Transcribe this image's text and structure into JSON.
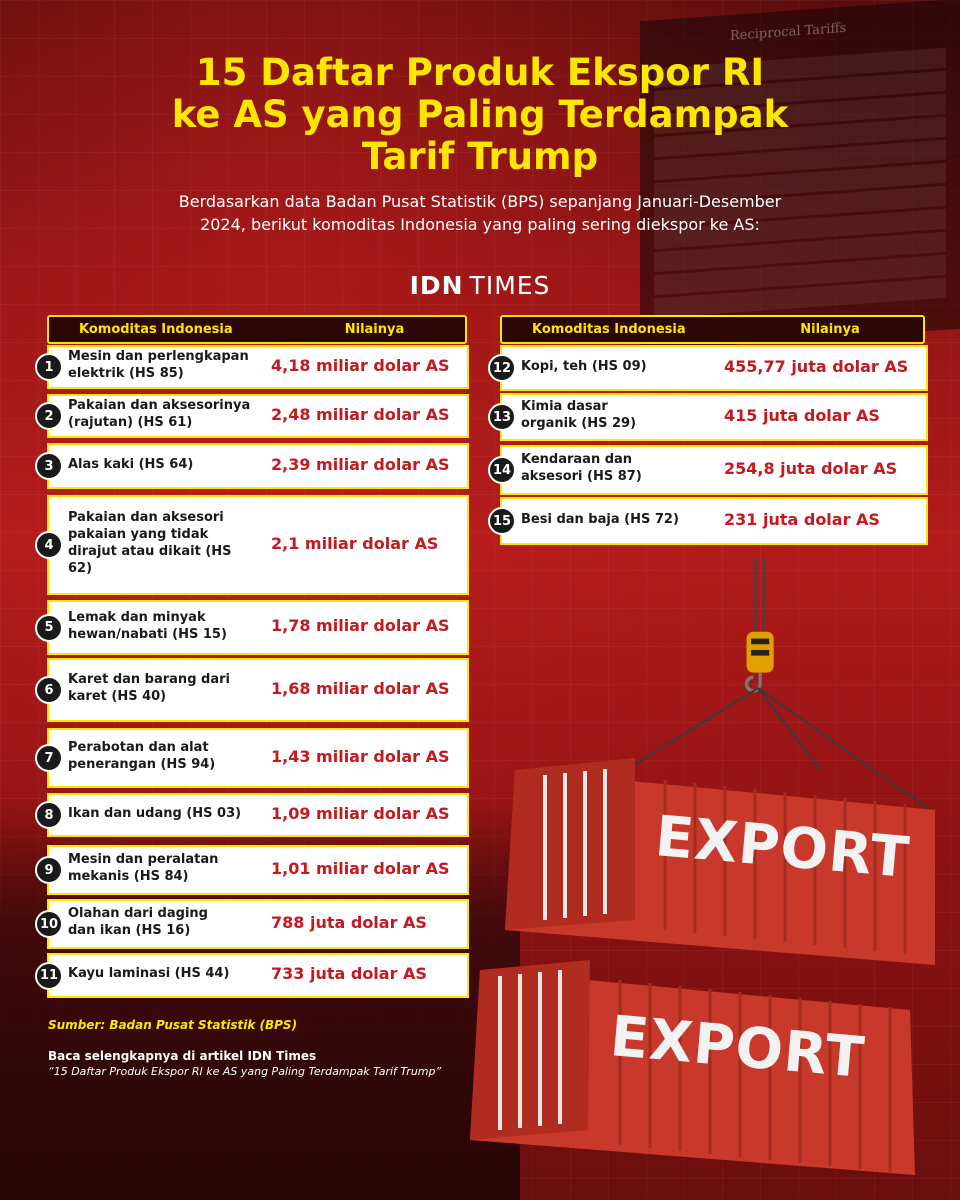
{
  "title_lines": [
    "15 Daftar Produk Ekspor RI",
    "ke AS yang Paling Terdampak",
    "Tarif Trump"
  ],
  "subtitle": "Berdasarkan data Badan Pusat Statistik (BPS) sepanjang Januari-Desember 2024, berikut komoditas Indonesia yang paling sering diekspor ke AS:",
  "brand": {
    "bold": "IDN",
    "light": "TIMES"
  },
  "table_headers": {
    "commodity": "Komoditas Indonesia",
    "value": "Nilainya"
  },
  "items_left": [
    {
      "num": "1",
      "name": "Mesin dan perlengkapan elektrik (HS 85)",
      "value": "4,18 miliar dolar AS"
    },
    {
      "num": "2",
      "name": "Pakaian dan aksesorinya (rajutan) (HS 61)",
      "value": "2,48 miliar dolar AS"
    },
    {
      "num": "3",
      "name": "Alas kaki (HS 64)",
      "value": "2,39 miliar dolar AS"
    },
    {
      "num": "4",
      "name": "Pakaian dan aksesori pakaian yang tidak dirajut atau dikait (HS 62)",
      "value": "2,1 miliar dolar AS"
    },
    {
      "num": "5",
      "name": "Lemak dan minyak hewan/nabati (HS 15)",
      "value": "1,78 miliar dolar AS"
    },
    {
      "num": "6",
      "name": "Karet dan barang dari karet (HS 40)",
      "value": "1,68 miliar dolar AS"
    },
    {
      "num": "7",
      "name": "Perabotan dan alat penerangan (HS 94)",
      "value": "1,43 miliar dolar AS"
    },
    {
      "num": "8",
      "name": "Ikan dan udang (HS 03)",
      "value": "1,09 miliar dolar AS"
    },
    {
      "num": "9",
      "name": "Mesin dan peralatan mekanis (HS 84)",
      "value": "1,01 miliar dolar AS"
    },
    {
      "num": "10",
      "name": "Olahan dari daging dan ikan (HS 16)",
      "value": "788 juta dolar AS"
    },
    {
      "num": "11",
      "name": "Kayu laminasi (HS 44)",
      "value": "733 juta dolar AS"
    }
  ],
  "items_right": [
    {
      "num": "12",
      "name": "Kopi, teh (HS 09)",
      "value": "455,77 juta dolar AS"
    },
    {
      "num": "13",
      "name": "Kimia dasar organik (HS 29)",
      "value": "415 juta dolar AS"
    },
    {
      "num": "14",
      "name": "Kendaraan dan aksesori (HS 87)",
      "value": "254,8 juta dolar AS"
    },
    {
      "num": "15",
      "name": "Besi dan baja (HS 72)",
      "value": "231 juta dolar AS"
    }
  ],
  "source": "Sumber: Badan Pusat Statistik (BPS)",
  "read_more": "Baca selengkapnya di artikel IDN Times",
  "article_title": "“15 Daftar Produk Ekspor RI ke AS yang Paling Terdampak Tarif Trump”",
  "container_label": "EXPORT",
  "board_header": "Reciprocal Tariffs",
  "colors": {
    "title": "#ffe600",
    "value": "#c4191f",
    "container": "#c9392b",
    "bg": "#8e1414"
  }
}
